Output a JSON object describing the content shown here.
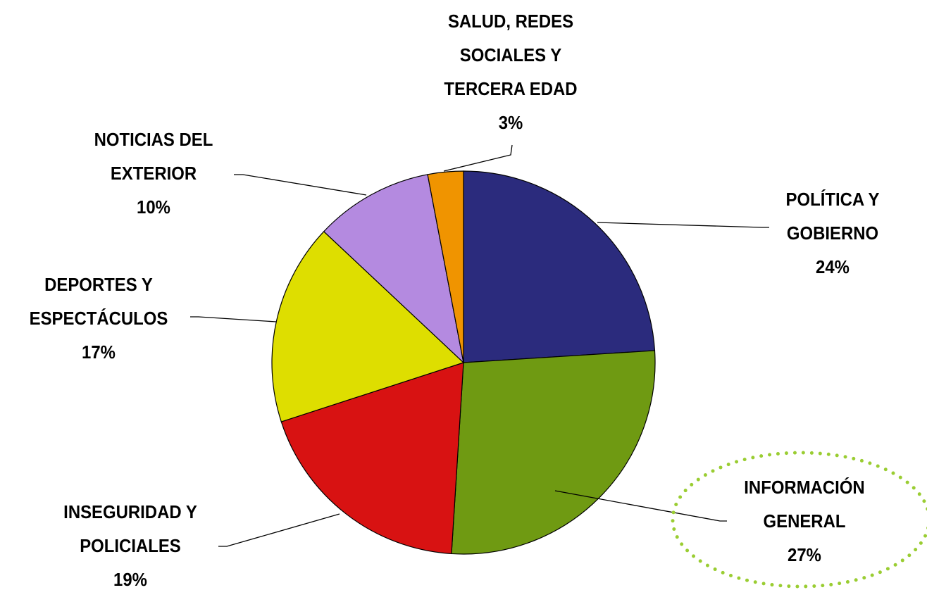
{
  "chart_data": {
    "type": "pie",
    "categories": [
      "POLÍTICA Y\nGOBIERNO",
      "INFORMACIÓN\nGENERAL",
      "INSEGURIDAD Y\nPOLICIALES",
      "DEPORTES Y\nESPECTÁCULOS",
      "NOTICIAS DEL\nEXTERIOR",
      "SALUD, REDES\nSOCIALES Y\nTERCERA EDAD"
    ],
    "values": [
      24,
      27,
      19,
      17,
      10,
      3
    ],
    "value_labels": [
      "24%",
      "27%",
      "19%",
      "17%",
      "10%",
      "3%"
    ],
    "colors": [
      "#2b2b7d",
      "#6f9a12",
      "#d81212",
      "#dede00",
      "#b48ae0",
      "#f09400"
    ]
  }
}
